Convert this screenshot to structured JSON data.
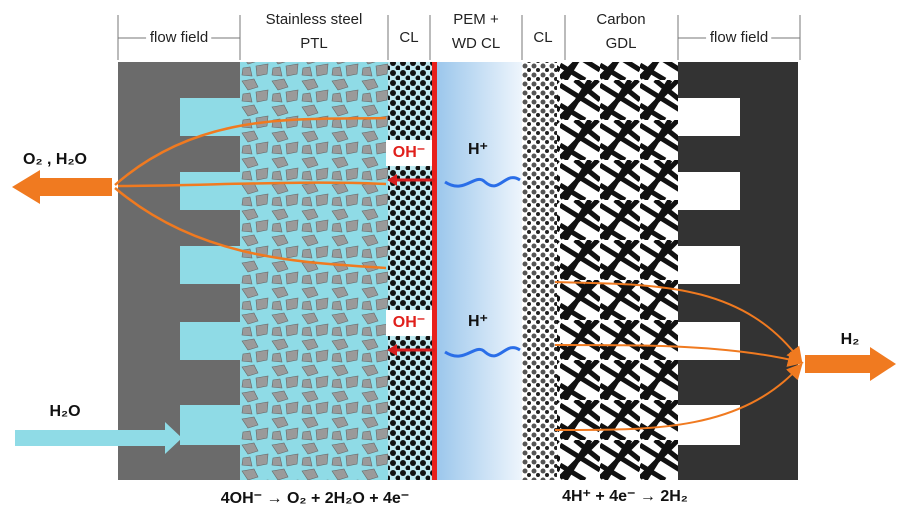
{
  "header": {
    "columns": [
      {
        "lines": [
          "flow field"
        ]
      },
      {
        "lines": [
          "Stainless steel",
          "PTL"
        ]
      },
      {
        "lines": [
          "CL"
        ]
      },
      {
        "lines": [
          "PEM +",
          "WD CL"
        ]
      },
      {
        "lines": [
          "CL"
        ]
      },
      {
        "lines": [
          "Carbon",
          "GDL"
        ]
      },
      {
        "lines": [
          "flow field"
        ]
      }
    ]
  },
  "labels": {
    "outlet_anode": "O₂ , H₂O",
    "inlet_anode": "H₂O",
    "outlet_cathode": "H₂",
    "hydroxide_top": "OH⁻",
    "hydroxide_bottom": "OH⁻",
    "proton_top": "H⁺",
    "proton_bottom": "H⁺"
  },
  "equations": {
    "anode": "4OH⁻ → O₂ + 2H₂O + 4e⁻",
    "cathode": "4H⁺ + 4e⁻ → 2H₂"
  }
}
